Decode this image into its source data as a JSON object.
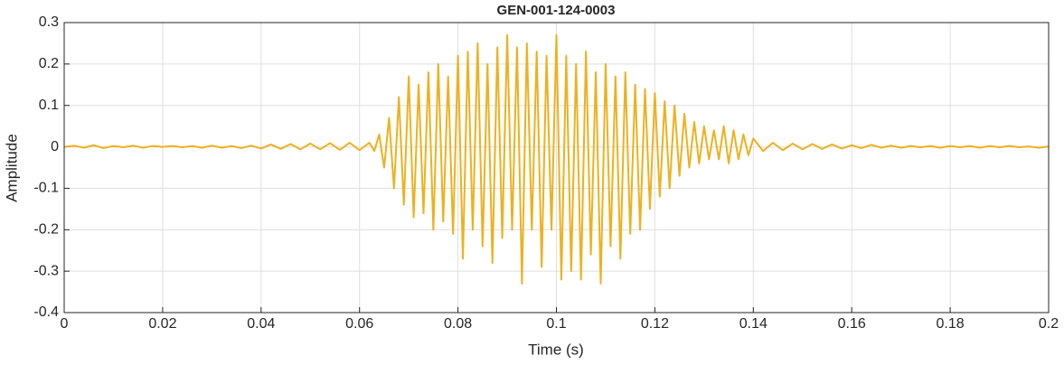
{
  "chart_data": {
    "type": "line",
    "title": "GEN-001-124-0003",
    "x_label": "Time (s)",
    "y_label": "Amplitude",
    "xlim": [
      0,
      0.2
    ],
    "xticks": [
      0,
      0.02,
      0.04,
      0.06,
      0.08,
      0.1,
      0.12,
      0.14,
      0.16,
      0.18,
      0.2
    ],
    "ylim": [
      -0.4,
      0.3
    ],
    "yticks": [
      -0.4,
      -0.3,
      -0.2,
      -0.1,
      0,
      0.1,
      0.2,
      0.3
    ],
    "grid": true,
    "x": [
      0,
      0.002,
      0.004,
      0.006,
      0.008,
      0.01,
      0.012,
      0.014,
      0.016,
      0.018,
      0.02,
      0.022,
      0.024,
      0.026,
      0.028,
      0.03,
      0.032,
      0.034,
      0.036,
      0.038,
      0.04,
      0.042,
      0.044,
      0.046,
      0.048,
      0.05,
      0.052,
      0.054,
      0.056,
      0.058,
      0.06,
      0.062,
      0.063,
      0.064,
      0.065,
      0.066,
      0.067,
      0.068,
      0.069,
      0.07,
      0.071,
      0.072,
      0.073,
      0.074,
      0.075,
      0.076,
      0.077,
      0.078,
      0.079,
      0.08,
      0.081,
      0.082,
      0.083,
      0.084,
      0.085,
      0.086,
      0.087,
      0.088,
      0.089,
      0.09,
      0.091,
      0.092,
      0.093,
      0.094,
      0.095,
      0.096,
      0.097,
      0.098,
      0.099,
      0.1,
      0.101,
      0.102,
      0.103,
      0.104,
      0.105,
      0.106,
      0.107,
      0.108,
      0.109,
      0.11,
      0.111,
      0.112,
      0.113,
      0.114,
      0.115,
      0.116,
      0.117,
      0.118,
      0.119,
      0.12,
      0.121,
      0.122,
      0.123,
      0.124,
      0.125,
      0.126,
      0.127,
      0.128,
      0.129,
      0.13,
      0.131,
      0.132,
      0.133,
      0.134,
      0.135,
      0.136,
      0.137,
      0.138,
      0.139,
      0.14,
      0.142,
      0.144,
      0.146,
      0.148,
      0.15,
      0.152,
      0.154,
      0.156,
      0.158,
      0.16,
      0.162,
      0.164,
      0.166,
      0.168,
      0.17,
      0.172,
      0.174,
      0.176,
      0.178,
      0.18,
      0.182,
      0.184,
      0.186,
      0.188,
      0.19,
      0.192,
      0.194,
      0.196,
      0.198,
      0.2
    ],
    "series": [
      {
        "name": "Amplitude",
        "color": "#edb120",
        "values": [
          0,
          0.003,
          -0.002,
          0.004,
          -0.003,
          0.002,
          -0.001,
          0.003,
          -0.002,
          0.002,
          0,
          0.002,
          -0.001,
          0.002,
          -0.002,
          0.003,
          -0.002,
          0.002,
          -0.003,
          0.003,
          -0.004,
          0.006,
          -0.005,
          0.007,
          -0.006,
          0.008,
          -0.006,
          0.009,
          -0.007,
          0.01,
          -0.008,
          0.01,
          -0.01,
          0.03,
          -0.05,
          0.07,
          -0.1,
          0.12,
          -0.14,
          0.17,
          -0.17,
          0.15,
          -0.16,
          0.18,
          -0.2,
          0.2,
          -0.18,
          0.17,
          -0.21,
          0.22,
          -0.27,
          0.23,
          -0.2,
          0.25,
          -0.24,
          0.2,
          -0.28,
          0.24,
          -0.22,
          0.27,
          -0.2,
          0.24,
          -0.33,
          0.25,
          -0.2,
          0.23,
          -0.29,
          0.22,
          -0.2,
          0.27,
          -0.32,
          0.22,
          -0.3,
          0.2,
          -0.32,
          0.23,
          -0.26,
          0.18,
          -0.33,
          0.2,
          -0.24,
          0.17,
          -0.27,
          0.18,
          -0.21,
          0.15,
          -0.2,
          0.14,
          -0.15,
          0.13,
          -0.12,
          0.11,
          -0.1,
          0.1,
          -0.07,
          0.08,
          -0.05,
          0.06,
          -0.04,
          0.05,
          -0.03,
          0.04,
          -0.03,
          0.05,
          -0.04,
          0.04,
          -0.03,
          0.03,
          -0.02,
          0.02,
          -0.01,
          0.01,
          -0.008,
          0.008,
          -0.006,
          0.007,
          -0.005,
          0.006,
          -0.004,
          0.004,
          -0.003,
          0.005,
          -0.002,
          0.003,
          -0.002,
          0.002,
          -0.001,
          0.002,
          -0.002,
          0.002,
          -0.001,
          0.002,
          -0.002,
          0.002,
          -0.001,
          0.002,
          -0.001,
          0.001,
          -0.002,
          0.001
        ]
      }
    ]
  }
}
